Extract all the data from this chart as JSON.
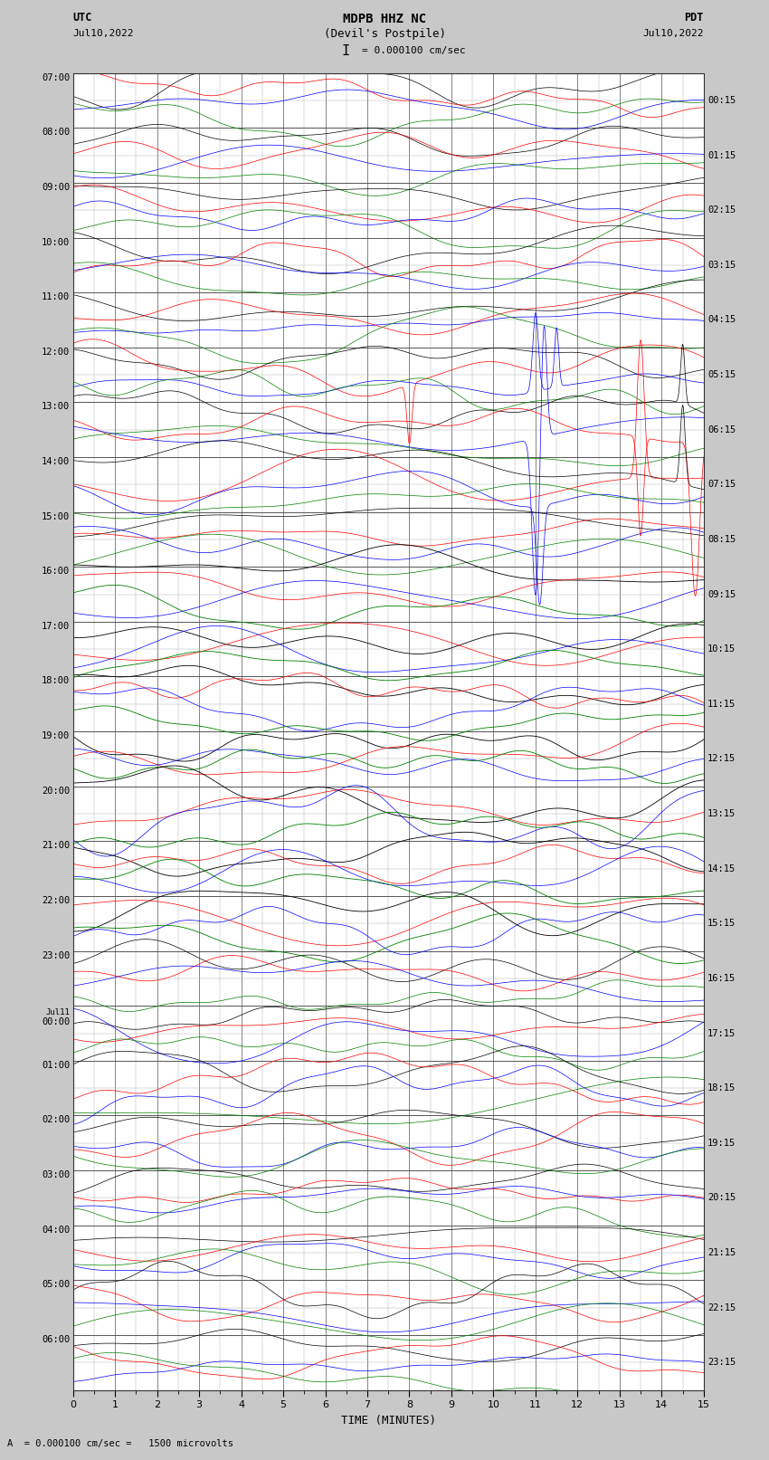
{
  "title_line1": "MDPB HHZ NC",
  "title_line2": "(Devil's Postpile)",
  "scale_label": "I = 0.000100 cm/sec",
  "utc_label": "UTC",
  "utc_date": "Jul10,2022",
  "pdt_label": "PDT",
  "pdt_date": "Jul10,2022",
  "xlabel": "TIME (MINUTES)",
  "bottom_note": "A  = 0.000100 cm/sec =   1500 microvolts",
  "left_times": [
    "07:00",
    "08:00",
    "09:00",
    "10:00",
    "11:00",
    "12:00",
    "13:00",
    "14:00",
    "15:00",
    "16:00",
    "17:00",
    "18:00",
    "19:00",
    "20:00",
    "21:00",
    "22:00",
    "23:00",
    "Jul11\n00:00",
    "01:00",
    "02:00",
    "03:00",
    "04:00",
    "05:00",
    "06:00"
  ],
  "right_times": [
    "00:15",
    "01:15",
    "02:15",
    "03:15",
    "04:15",
    "05:15",
    "06:15",
    "07:15",
    "08:15",
    "09:15",
    "10:15",
    "11:15",
    "12:15",
    "13:15",
    "14:15",
    "15:15",
    "16:15",
    "17:15",
    "18:15",
    "19:15",
    "20:15",
    "21:15",
    "22:15",
    "23:15"
  ],
  "n_rows": 24,
  "minutes_per_row": 15,
  "x_ticks": [
    0,
    1,
    2,
    3,
    4,
    5,
    6,
    7,
    8,
    9,
    10,
    11,
    12,
    13,
    14,
    15
  ],
  "colors": [
    "black",
    "red",
    "blue",
    "green"
  ],
  "bg_color": "#c8c8c8",
  "plot_bg": "#ffffff",
  "grid_major_color": "#555555",
  "grid_minor_color": "#aaaaaa",
  "figsize": [
    8.5,
    16.13
  ]
}
